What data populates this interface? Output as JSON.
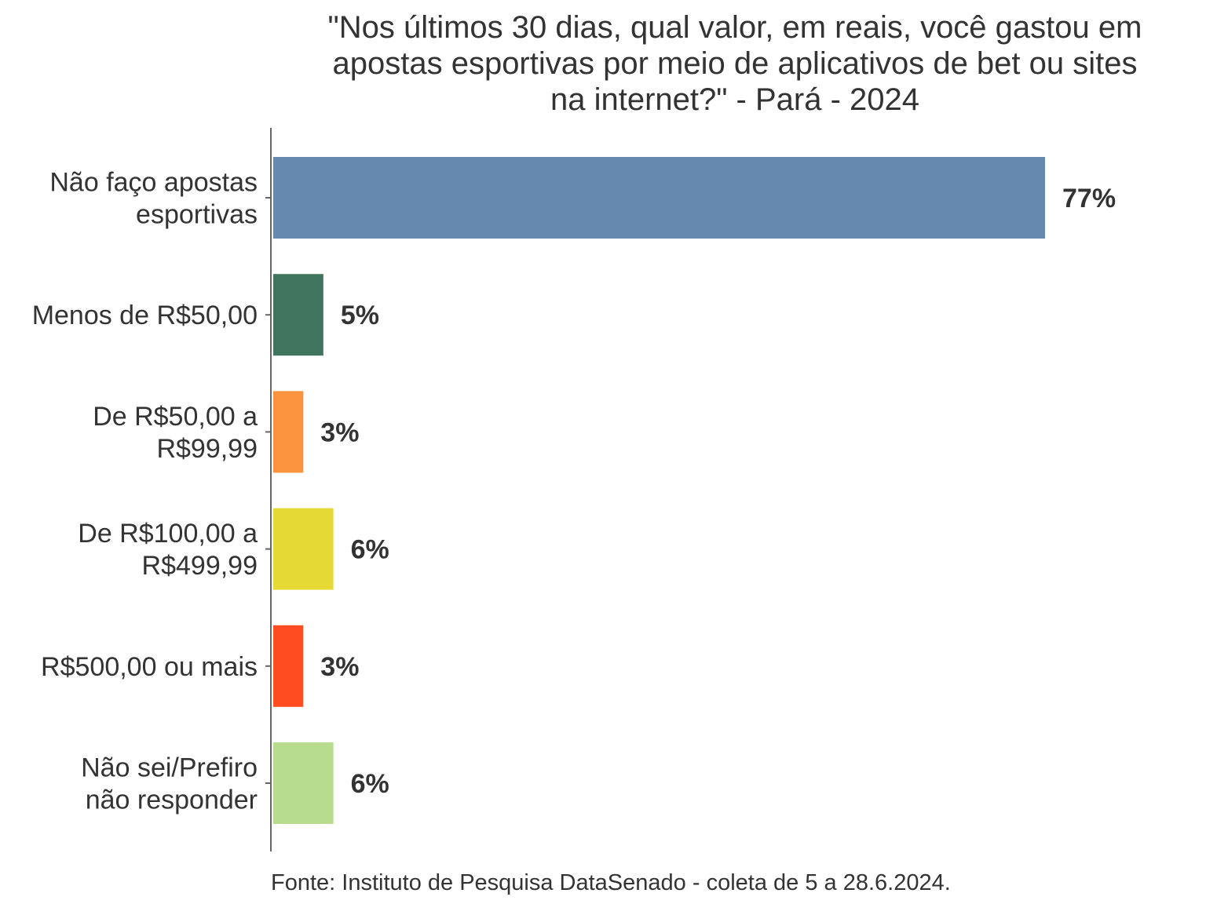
{
  "chart_data": {
    "type": "bar",
    "orientation": "horizontal",
    "title_lines": [
      "\"Nos últimos 30 dias, qual valor, em reais, você gastou em",
      "apostas esportivas por meio de aplicativos de bet ou sites",
      "na internet?\" - Pará - 2024"
    ],
    "categories": [
      [
        "Não faço apostas",
        "esportivas"
      ],
      [
        "Menos de R$50,00"
      ],
      [
        "De R$50,00 a",
        "R$99,99"
      ],
      [
        "De R$100,00 a",
        "R$499,99"
      ],
      [
        "R$500,00 ou mais"
      ],
      [
        "Não sei/Prefiro",
        "não responder"
      ]
    ],
    "values": [
      77,
      5,
      3,
      6,
      3,
      6
    ],
    "value_labels": [
      "77%",
      "5%",
      "3%",
      "6%",
      "3%",
      "6%"
    ],
    "colors": [
      "#6689B0",
      "#427560",
      "#FB923E",
      "#E5D935",
      "#FF4D21",
      "#B8DC8E"
    ],
    "xlim": [
      0,
      77
    ],
    "grid": false,
    "legend": "none",
    "caption": "Fonte: Instituto de Pesquisa DataSenado - coleta de 5 a 28.6.2024."
  }
}
